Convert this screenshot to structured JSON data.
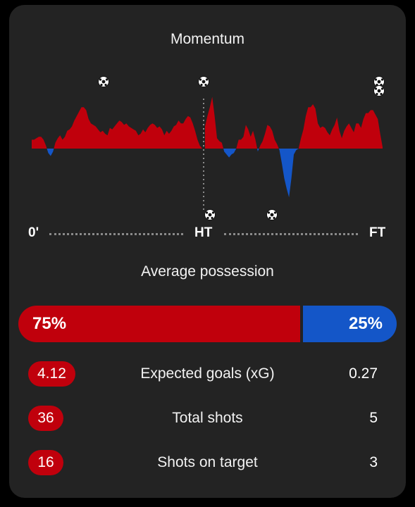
{
  "momentum": {
    "title": "Momentum",
    "axis": {
      "start": "0'",
      "half": "HT",
      "end": "FT"
    },
    "home_color": "#c0000c",
    "away_color": "#1456c8",
    "goal_icon": "soccer-ball-icon"
  },
  "chart_data": {
    "type": "area",
    "values_first_half": [
      6,
      6,
      7,
      8,
      8,
      6,
      2,
      -3,
      -5,
      -2,
      4,
      7,
      9,
      6,
      8,
      12,
      13,
      15,
      19,
      22,
      25,
      28,
      28,
      26,
      20,
      17,
      16,
      15,
      13,
      11,
      12,
      10,
      9,
      14,
      13,
      15,
      17,
      19,
      18,
      16,
      17,
      15,
      14,
      13,
      12,
      9,
      10,
      13,
      11,
      14,
      16,
      17,
      16,
      14,
      15,
      13,
      9,
      12,
      10,
      12,
      15,
      16,
      19,
      17,
      17,
      20,
      22,
      21,
      17,
      12,
      6,
      2,
      0
    ],
    "values_second_half": [
      15,
      22,
      28,
      35,
      22,
      7,
      5,
      4,
      -2,
      -4,
      -6,
      -4,
      -3,
      0,
      6,
      6,
      8,
      16,
      13,
      8,
      12,
      6,
      -2,
      2,
      5,
      10,
      16,
      15,
      12,
      6,
      3,
      -1,
      -10,
      -20,
      -27,
      -33,
      -20,
      -4,
      -1,
      0,
      7,
      13,
      22,
      28,
      28,
      30,
      27,
      17,
      14,
      15,
      14,
      11,
      9,
      13,
      16,
      21,
      12,
      7,
      12,
      15,
      17,
      14,
      11,
      17,
      17,
      14,
      20,
      24,
      24,
      26,
      26,
      23,
      20,
      10,
      1
    ],
    "home_goals_first_half": 1,
    "home_goals_second_half": 3,
    "away_goals_second_half": 2
  },
  "possession": {
    "title": "Average possession",
    "home": "75%",
    "away": "25%",
    "home_value": 75,
    "away_value": 25
  },
  "stats": [
    {
      "label": "Expected goals (xG)",
      "home": "4.12",
      "away": "0.27"
    },
    {
      "label": "Total shots",
      "home": "36",
      "away": "5"
    },
    {
      "label": "Shots on target",
      "home": "16",
      "away": "3"
    }
  ]
}
